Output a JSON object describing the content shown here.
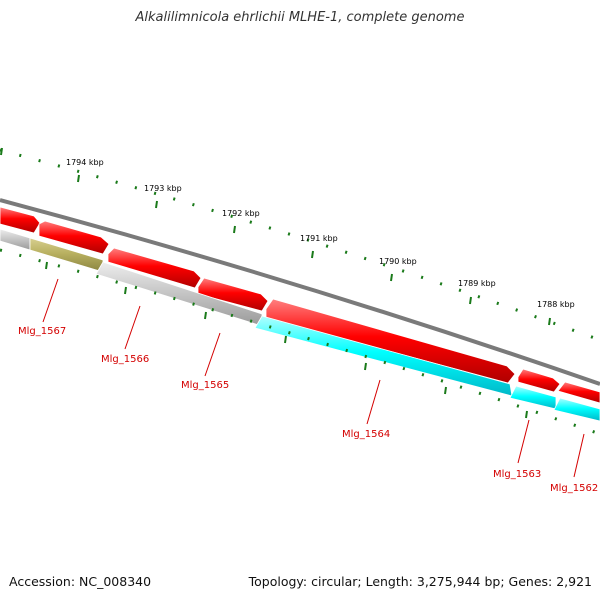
{
  "title": "Alkalilimnicola ehrlichii MLHE-1, complete genome",
  "footer": {
    "accession": "Accession: NC_008340",
    "summary": "Topology: circular; Length: 3,275,944 bp; Genes: 2,921"
  },
  "kbp_labels": [
    "1794 kbp",
    "1793 kbp",
    "1792 kbp",
    "1791 kbp",
    "1790 kbp",
    "1789 kbp",
    "1788 kbp"
  ],
  "gene_labels": [
    "Mlg_1567",
    "Mlg_1566",
    "Mlg_1565",
    "Mlg_1564",
    "Mlg_1563",
    "Mlg_1562"
  ],
  "colors": {
    "forward_gene": "#ff0000",
    "reverse_gene_cyan": "#00ffff",
    "reverse_gene_grey": "#c8c8c8",
    "reverse_gene_olive": "#b8b060",
    "backbone": "#808080",
    "tick": "#1a7a1a",
    "label": "#d40000"
  }
}
